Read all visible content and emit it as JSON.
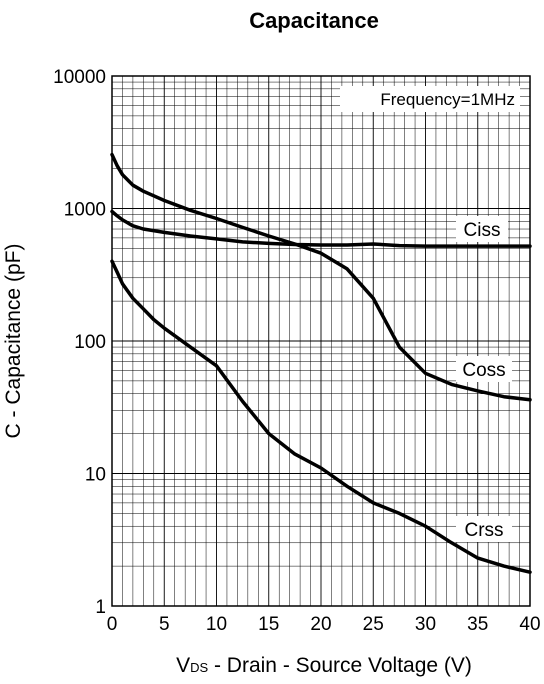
{
  "chart_data": {
    "type": "line",
    "title": "Capacitance",
    "xlabel_prefix": "V",
    "xlabel_subscript": "DS",
    "xlabel_rest": " - Drain - Source Voltage (V)",
    "ylabel": "C - Capacitance (pF)",
    "annotation": "Frequency=1MHz",
    "x_ticks": [
      "0",
      "5",
      "10",
      "15",
      "20",
      "25",
      "30",
      "35",
      "40"
    ],
    "y_ticks": [
      "1",
      "10",
      "100",
      "1000",
      "10000"
    ],
    "xlim": [
      0,
      40
    ],
    "ylim": [
      1,
      10000
    ],
    "y_scale": "log",
    "grid": true,
    "series": [
      {
        "name": "Ciss",
        "x": [
          0,
          0.5,
          1,
          2,
          3,
          5,
          7.5,
          10,
          12.5,
          15,
          17.5,
          20,
          22.5,
          25,
          27.5,
          30,
          32.5,
          35,
          37.5,
          40
        ],
        "y": [
          2550,
          2100,
          1800,
          1500,
          1350,
          1150,
          970,
          840,
          720,
          620,
          540,
          460,
          350,
          210,
          90,
          57,
          47,
          42,
          38,
          36
        ]
      },
      {
        "name": "Coss",
        "x": [
          0,
          0.5,
          1,
          2,
          3,
          5,
          7.5,
          10,
          12.5,
          15,
          17.5,
          20,
          22.5,
          25,
          27.5,
          30,
          32.5,
          35,
          37.5,
          40
        ],
        "y": [
          950,
          880,
          820,
          740,
          700,
          660,
          620,
          590,
          560,
          545,
          535,
          530,
          530,
          540,
          525,
          520,
          520,
          520,
          520,
          520
        ]
      },
      {
        "name": "Crss",
        "x": [
          0,
          0.5,
          1,
          2,
          3,
          4,
          5,
          7.5,
          10,
          12.5,
          15,
          17.5,
          20,
          22.5,
          25,
          27.5,
          30,
          32.5,
          35,
          37.5,
          40
        ],
        "y": [
          400,
          330,
          270,
          210,
          175,
          145,
          125,
          90,
          65,
          35,
          20,
          14,
          11,
          8,
          6,
          5,
          4,
          3,
          2.3,
          2.0,
          1.8
        ]
      }
    ]
  }
}
